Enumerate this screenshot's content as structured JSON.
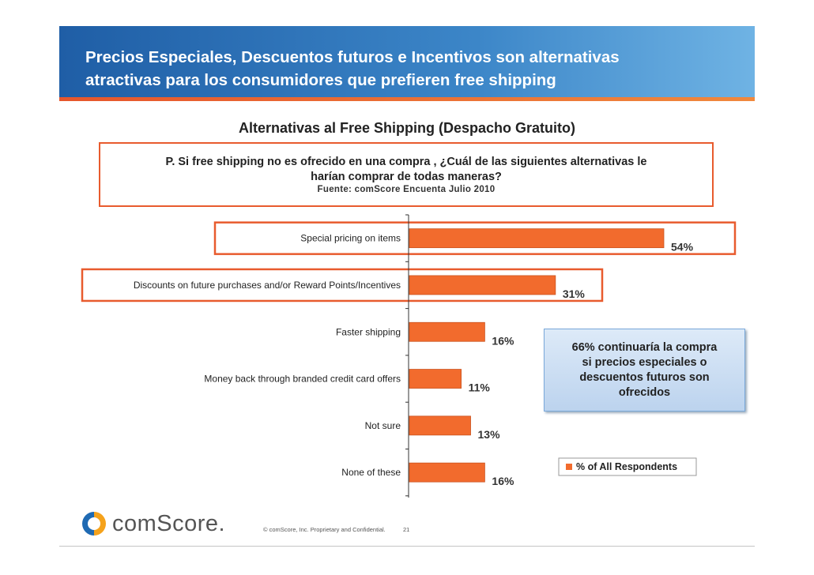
{
  "header": {
    "title_line1": "Precios Especiales, Descuentos futuros e Incentivos son alternativas",
    "title_line2": "atractivas para los consumidores que prefieren free shipping"
  },
  "subtitle": "Alternativas al Free Shipping (Despacho Gratuito)",
  "question": {
    "line1": "P. Si free shipping no es ofrecido en una compra , ¿Cuál de las siguientes alternativas le",
    "line2": "harían comprar de todas maneras?",
    "source": "Fuente:  comScore Encuenta Julio 2010"
  },
  "callout": {
    "line1": "66% continuaría la compra",
    "line2": "si precios especiales o",
    "line3": "descuentos futuros son",
    "line4": "ofrecidos"
  },
  "footer": {
    "logo_text": "comScore.",
    "copyright": "© comScore, Inc.  Proprietary and Confidential.",
    "page_number": "21"
  },
  "colors": {
    "bar": "#f26b2d",
    "highlight": "#e85b2e",
    "header": "#2e73b8"
  },
  "chart_data": {
    "type": "bar",
    "orientation": "horizontal",
    "categories": [
      "Special pricing on items",
      "Discounts on future purchases and/or Reward Points/Incentives",
      "Faster shipping",
      "Money back through branded credit card offers",
      "Not sure",
      "None of these"
    ],
    "series": [
      {
        "name": "% of All Respondents",
        "values": [
          54,
          31,
          16,
          11,
          13,
          16
        ]
      }
    ],
    "data_labels": [
      "54%",
      "31%",
      "16%",
      "11%",
      "13%",
      "16%"
    ],
    "highlighted": [
      "Special pricing on items",
      "Discounts on future purchases and/or Reward Points/Incentives"
    ],
    "xlim": [
      0,
      54
    ],
    "legend_position": "bottom-right",
    "grid": false
  }
}
